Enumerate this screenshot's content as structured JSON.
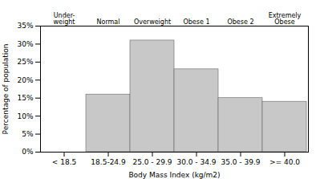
{
  "chart_data": {
    "type": "bar",
    "xlabel": "Body Mass Index (kg/m2)",
    "ylabel": "Percentage of population",
    "categories": [
      "< 18.5",
      "18.5-24.9",
      "25.0 - 29.9",
      "30.0 - 34.9",
      "35.0 - 39.9",
      ">= 40.0"
    ],
    "values": [
      0,
      16,
      31,
      23,
      15,
      14
    ],
    "color": "#c8c8c8",
    "ylim": [
      0,
      35
    ],
    "yticks": [
      {
        "value": 0,
        "label": "0%"
      },
      {
        "value": 5,
        "label": "5%"
      },
      {
        "value": 10,
        "label": "10%"
      },
      {
        "value": 15,
        "label": "15%"
      },
      {
        "value": 20,
        "label": "20%"
      },
      {
        "value": 25,
        "label": "25%"
      },
      {
        "value": 30,
        "label": "30%"
      },
      {
        "value": 35,
        "label": "35%"
      }
    ],
    "annotations": [
      {
        "x": "< 18.5",
        "text": "Under-\nweight"
      },
      {
        "x": "18.5-24.9",
        "text": "Normal"
      },
      {
        "x": "25.0 - 29.9",
        "text": "Overweight"
      },
      {
        "x": "30.0 - 34.9",
        "text": "Obese 1"
      },
      {
        "x": "35.0 - 39.9",
        "text": "Obese 2"
      },
      {
        "x": ">= 40.0",
        "text": "Extremely\nObese"
      }
    ],
    "grid": false
  }
}
